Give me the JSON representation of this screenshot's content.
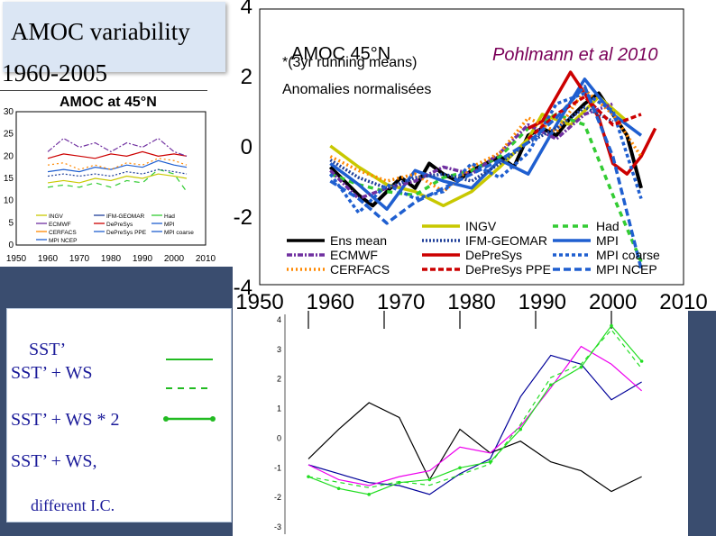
{
  "header": {
    "title_line1": "AMOC variability",
    "title_line2": "1960-2005",
    "citation": "Pohlmann et al 2010"
  },
  "legend_panel": {
    "items": [
      "SST’",
      "SST’ + WS",
      "SST’ + WS * 2",
      "SST’ + WS,",
      "different I.C."
    ]
  },
  "chart_data": [
    {
      "type": "line",
      "title": "AMOC at 45°N",
      "xlim": [
        1950,
        2010
      ],
      "ylim": [
        0,
        30
      ],
      "xticks": [
        "1950",
        "1960",
        "1970",
        "1980",
        "1990",
        "2000",
        "2010"
      ],
      "yticks": [
        "0",
        "5",
        "10",
        "15",
        "20",
        "25",
        "30"
      ],
      "legend": [
        "INGV",
        "IFM-GEOMAR",
        "Had",
        "ECMWF",
        "DePreSys",
        "MPI",
        "CERFACS",
        "DePreSys PPE",
        "MPI coarse",
        "MPI NCEP"
      ],
      "series": [
        {
          "name": "DePreSys",
          "color": "#cc0000",
          "x": [
            1960,
            1965,
            1970,
            1975,
            1980,
            1985,
            1990,
            1995,
            2000,
            2004
          ],
          "y": [
            19.5,
            20.5,
            20,
            19.5,
            20.5,
            20,
            21,
            20,
            20.5,
            20
          ]
        },
        {
          "name": "MPI",
          "color": "#1f5fd0",
          "x": [
            1960,
            1965,
            1970,
            1975,
            1980,
            1985,
            1990,
            1995,
            2000,
            2004
          ],
          "y": [
            16.5,
            17,
            16.5,
            17.5,
            17,
            18,
            17.5,
            19,
            18,
            17.5
          ]
        },
        {
          "name": "ECMWF",
          "color": "#7030a0",
          "x": [
            1960,
            1965,
            1970,
            1975,
            1980,
            1985,
            1990,
            1995,
            2000,
            2004
          ],
          "y": [
            21,
            24,
            22,
            23,
            21,
            23,
            22,
            24,
            21,
            20
          ]
        },
        {
          "name": "INGV",
          "color": "#c8c800",
          "x": [
            1960,
            1965,
            1970,
            1975,
            1980,
            1985,
            1990,
            1995,
            2000,
            2004
          ],
          "y": [
            14,
            14.5,
            14,
            15,
            14.5,
            15.5,
            15,
            16,
            15.5,
            15
          ]
        },
        {
          "name": "Had",
          "color": "#33cc33",
          "x": [
            1960,
            1965,
            1970,
            1975,
            1980,
            1985,
            1990,
            1995,
            2000,
            2004
          ],
          "y": [
            13,
            13.5,
            13,
            14,
            13,
            14.5,
            14,
            17,
            16,
            12
          ]
        },
        {
          "name": "IFM-GEOMAR",
          "color": "#1f3f99",
          "x": [
            1960,
            1965,
            1970,
            1975,
            1980,
            1985,
            1990,
            1995,
            2000,
            2004
          ],
          "y": [
            15.5,
            16,
            15.5,
            16,
            15.5,
            16.5,
            16,
            17,
            16.5,
            16
          ]
        },
        {
          "name": "CERFACS",
          "color": "#ff8800",
          "x": [
            1960,
            1965,
            1970,
            1975,
            1980,
            1985,
            1990,
            1995,
            2000,
            2004
          ],
          "y": [
            18,
            18.5,
            17,
            18,
            17,
            18.5,
            18,
            19.5,
            19,
            18
          ]
        }
      ]
    },
    {
      "type": "line",
      "title": "AMOC 45°N",
      "notes": [
        "*(3yr running means)",
        "Anomalies normalisées"
      ],
      "xlim": [
        1950,
        2010
      ],
      "ylim": [
        -4,
        4
      ],
      "xticks": [
        "1950",
        "1960",
        "1970",
        "1980",
        "1990",
        "2000",
        "2010"
      ],
      "yticks": [
        "4",
        "2",
        "0",
        "-2",
        "-4"
      ],
      "legend": [
        "Ens mean",
        "INGV",
        "Had",
        "IFM-GEOMAR",
        "MPI",
        "ECMWF",
        "DePreSys",
        "MPI coarse",
        "CERFACS",
        "DePreSys PPE",
        "MPI NCEP"
      ],
      "series": [
        {
          "name": "Ens mean",
          "color": "#000000",
          "x": [
            1960,
            1962,
            1964,
            1966,
            1968,
            1970,
            1972,
            1974,
            1976,
            1978,
            1980,
            1982,
            1984,
            1986,
            1988,
            1990,
            1992,
            1994,
            1996,
            1998,
            2000,
            2002,
            2004
          ],
          "y": [
            -0.6,
            -1,
            -1.4,
            -1.7,
            -1.3,
            -0.9,
            -1.2,
            -0.5,
            -0.8,
            -1,
            -0.7,
            -0.5,
            -0.3,
            -0.6,
            0.3,
            0.5,
            0.3,
            0.8,
            1.2,
            1.5,
            0.9,
            0.3,
            -1.2
          ]
        },
        {
          "name": "INGV",
          "color": "#c8c800",
          "x": [
            1960,
            1964,
            1968,
            1972,
            1976,
            1980,
            1984,
            1988,
            1990,
            1994,
            1998,
            2002
          ],
          "y": [
            0,
            -0.6,
            -1.1,
            -1.3,
            -1.7,
            -1.3,
            -0.6,
            0.2,
            0.9,
            0.6,
            1.4,
            0.7
          ]
        },
        {
          "name": "Had",
          "color": "#33cc33",
          "x": [
            1960,
            1964,
            1968,
            1972,
            1976,
            1980,
            1984,
            1988,
            1992,
            1996,
            2000,
            2004
          ],
          "y": [
            -0.8,
            -1.1,
            -1.3,
            -1.4,
            -0.9,
            -0.7,
            -0.3,
            0.5,
            0.9,
            0.6,
            -1.4,
            -3.3
          ]
        },
        {
          "name": "MPI",
          "color": "#1f5fd0",
          "x": [
            1960,
            1964,
            1968,
            1972,
            1976,
            1980,
            1984,
            1988,
            1992,
            1996,
            2000,
            2004
          ],
          "y": [
            -0.5,
            -1.1,
            -1.8,
            -0.7,
            -1,
            -1.2,
            -0.4,
            -0.8,
            0.6,
            1.9,
            0.9,
            0.3
          ]
        },
        {
          "name": "ECMWF",
          "color": "#7030a0",
          "x": [
            1960,
            1964,
            1968,
            1972,
            1976,
            1980,
            1984,
            1988,
            1992,
            1996,
            2000
          ],
          "y": [
            -0.7,
            -1.5,
            -1.2,
            -1,
            -0.6,
            -0.8,
            -0.2,
            0.6,
            0.2,
            0.9,
            1.2
          ]
        },
        {
          "name": "DePreSys",
          "color": "#cc0000",
          "x": [
            1988,
            1990,
            1992,
            1994,
            1996,
            1998,
            2000,
            2002,
            2004,
            2006
          ],
          "y": [
            0.5,
            0.7,
            1.4,
            2.1,
            1.5,
            0.8,
            -0.5,
            -0.8,
            -0.3,
            0.5
          ]
        },
        {
          "name": "CERFACS",
          "color": "#ff8800",
          "x": [
            1960,
            1964,
            1968,
            1972,
            1976,
            1980,
            1984,
            1988,
            1992,
            1996,
            2000,
            2004
          ],
          "y": [
            -0.3,
            -0.7,
            -1,
            -0.8,
            -1.3,
            -0.6,
            -0.2,
            0.8,
            0.4,
            1.6,
            0.9,
            -0.3
          ]
        },
        {
          "name": "IFM-GEOMAR",
          "color": "#1f3f99",
          "x": [
            1960,
            1964,
            1968,
            1972,
            1976,
            1980,
            1984,
            1988,
            1992,
            1996,
            2000
          ],
          "y": [
            -0.4,
            -0.9,
            -1.2,
            -0.9,
            -0.8,
            -1,
            -0.5,
            0.1,
            0.5,
            1.1,
            0.7
          ]
        },
        {
          "name": "MPI coarse",
          "color": "#1f5fd0",
          "x": [
            1960,
            1964,
            1968,
            1972,
            1976,
            1980,
            1984,
            1988,
            1992,
            1996,
            2000,
            2004
          ],
          "y": [
            -0.8,
            -1.9,
            -1.1,
            -1.5,
            -1.3,
            -0.5,
            -0.9,
            -0.2,
            1.2,
            1.5,
            1,
            -1.5
          ]
        },
        {
          "name": "DePreSys PPE",
          "color": "#cc0000",
          "x": [
            1988,
            1992,
            1996,
            2000,
            2004
          ],
          "y": [
            0.2,
            0.9,
            1.4,
            0.6,
            0.9
          ]
        },
        {
          "name": "MPI NCEP",
          "color": "#1f5fd0",
          "x": [
            1960,
            1964,
            1968,
            1972,
            1976,
            1980,
            1984,
            1988,
            1992,
            1996,
            2000,
            2004
          ],
          "y": [
            -1,
            -1.5,
            -2.2,
            -1.6,
            -1.2,
            -0.8,
            -0.4,
            0.1,
            0.8,
            1.7,
            -0.3,
            -3.5
          ]
        }
      ]
    },
    {
      "type": "line",
      "xlim": [
        1950,
        2010
      ],
      "ylim": [
        -3,
        4
      ],
      "yticks": [
        "4",
        "3",
        "2",
        "1",
        "0",
        "-1",
        "-2",
        "-3"
      ],
      "series": [
        {
          "color": "#000000",
          "x": [
            1960,
            1964,
            1968,
            1972,
            1976,
            1980,
            1984,
            1988,
            1992,
            1996,
            2000,
            2004
          ],
          "y": [
            -0.7,
            0.3,
            1.2,
            0.7,
            -1.4,
            0.3,
            -0.5,
            -0.1,
            -0.8,
            -1.1,
            -1.8,
            -1.3
          ]
        },
        {
          "color": "#000099",
          "x": [
            1960,
            1964,
            1968,
            1972,
            1976,
            1980,
            1984,
            1988,
            1992,
            1996,
            2000,
            2004
          ],
          "y": [
            -0.9,
            -1.2,
            -1.5,
            -1.6,
            -1.9,
            -1.2,
            -0.7,
            1.4,
            2.8,
            2.5,
            1.3,
            1.9
          ]
        },
        {
          "color": "#ee00ee",
          "x": [
            1960,
            1964,
            1968,
            1972,
            1976,
            1980,
            1984,
            1988,
            1992,
            1996,
            2000,
            2004
          ],
          "y": [
            -0.9,
            -1.4,
            -1.6,
            -1.3,
            -1.1,
            -0.3,
            -0.5,
            0.4,
            1.7,
            3.1,
            2.5,
            1.6
          ]
        },
        {
          "color": "#22dd22",
          "x": [
            1960,
            1964,
            1968,
            1972,
            1976,
            1980,
            1984,
            1988,
            1992,
            1996,
            2000,
            2004
          ],
          "y": [
            -1.3,
            -1.7,
            -1.9,
            -1.5,
            -1.4,
            -1,
            -0.8,
            0.3,
            1.8,
            2.4,
            3.8,
            2.6
          ]
        }
      ]
    }
  ]
}
